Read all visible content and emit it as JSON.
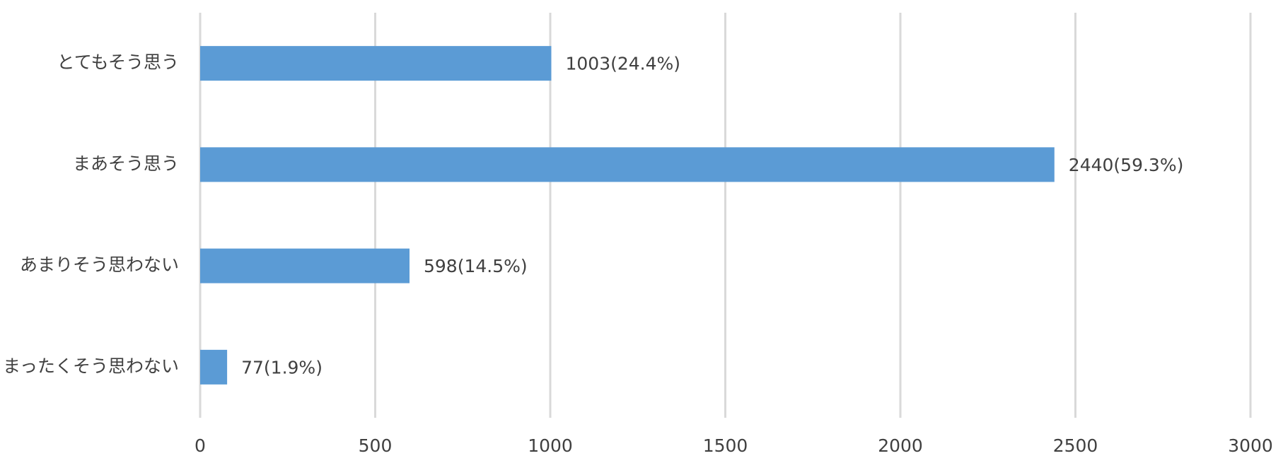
{
  "chart_data": {
    "type": "hbar",
    "categories": [
      "とてもそう思う",
      "まあそう思う",
      "あまりそう思わない",
      "まったくそう思わない"
    ],
    "values": [
      1003,
      2440,
      598,
      77
    ],
    "value_labels": [
      "1003(24.4%)",
      "2440(59.3%)",
      "598(14.5%)",
      "77(1.9%)"
    ],
    "color": "#5b9bd5",
    "xlim": [
      0,
      3000
    ],
    "xticks": [
      0,
      500,
      1000,
      1500,
      2000,
      2500,
      3000
    ],
    "grid": true
  }
}
